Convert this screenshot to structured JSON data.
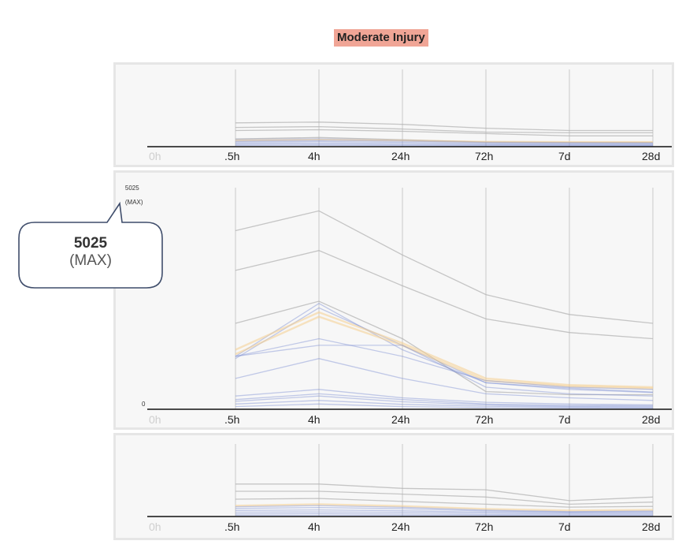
{
  "title": "Moderate Injury",
  "axis": {
    "max_value": "5025",
    "max_tag": "(MAX)",
    "min_value": "0"
  },
  "callout": {
    "value": "5025",
    "tag": "(MAX)"
  },
  "colors": {
    "title_bg": "#f0a596",
    "grey_series": "#b4b4b4",
    "blue_series": "#7d8fd2",
    "orange_series": "#f5cf8f",
    "panel_bg": "#f7f7f7"
  },
  "chart_data": [
    {
      "type": "line",
      "title": "Moderate Injury",
      "categories": [
        "0h",
        ".5h",
        "4h",
        "24h",
        "72h",
        "7d",
        "28d"
      ],
      "ylim": [
        0,
        5025
      ],
      "series_style": "grey",
      "series": [
        {
          "group": "grey",
          "values": [
            null,
            1550,
            1600,
            1450,
            1200,
            1050,
            1050
          ]
        },
        {
          "group": "grey",
          "values": [
            null,
            1250,
            1300,
            1150,
            950,
            900,
            900
          ]
        },
        {
          "group": "grey",
          "values": [
            null,
            1050,
            1100,
            1000,
            850,
            700,
            700
          ]
        },
        {
          "group": "grey",
          "values": [
            null,
            500,
            600,
            450,
            300,
            280,
            280
          ]
        },
        {
          "group": "blue",
          "values": [
            null,
            450,
            520,
            420,
            300,
            260,
            250
          ]
        },
        {
          "group": "orange",
          "values": [
            null,
            400,
            450,
            400,
            320,
            300,
            300
          ]
        },
        {
          "group": "blue",
          "values": [
            null,
            360,
            420,
            360,
            260,
            240,
            230
          ]
        },
        {
          "group": "blue",
          "values": [
            null,
            300,
            340,
            280,
            200,
            180,
            170
          ]
        },
        {
          "group": "blue",
          "values": [
            null,
            220,
            250,
            200,
            150,
            130,
            120
          ]
        },
        {
          "group": "blue",
          "values": [
            null,
            150,
            170,
            130,
            100,
            90,
            80
          ]
        },
        {
          "group": "blue",
          "values": [
            null,
            80,
            90,
            70,
            50,
            45,
            40
          ]
        }
      ]
    },
    {
      "type": "line",
      "title": "",
      "categories": [
        "0h",
        ".5h",
        "4h",
        "24h",
        "72h",
        "7d",
        "28d"
      ],
      "ylim": [
        0,
        5025
      ],
      "series": [
        {
          "group": "grey",
          "values": [
            null,
            4050,
            4500,
            3500,
            2600,
            2150,
            1950
          ]
        },
        {
          "group": "grey",
          "values": [
            null,
            3150,
            3600,
            2800,
            2050,
            1740,
            1600
          ]
        },
        {
          "group": "grey",
          "values": [
            null,
            1950,
            2450,
            1600,
            400,
            330,
            330
          ]
        },
        {
          "group": "blue",
          "values": [
            null,
            1200,
            2400,
            1350,
            600,
            450,
            380
          ]
        },
        {
          "group": "blue",
          "values": [
            null,
            1150,
            2300,
            1450,
            600,
            480,
            390
          ]
        },
        {
          "group": "orange",
          "values": [
            null,
            1350,
            2200,
            1500,
            700,
            550,
            500
          ]
        },
        {
          "group": "orange",
          "values": [
            null,
            1250,
            2100,
            1450,
            650,
            520,
            470
          ]
        },
        {
          "group": "blue",
          "values": [
            null,
            1200,
            1600,
            1200,
            650,
            500,
            450
          ]
        },
        {
          "group": "blue",
          "values": [
            null,
            1200,
            1450,
            1450,
            500,
            350,
            300
          ]
        },
        {
          "group": "blue",
          "values": [
            null,
            700,
            1150,
            700,
            350,
            260,
            200
          ]
        },
        {
          "group": "blue",
          "values": [
            null,
            300,
            450,
            260,
            160,
            120,
            100
          ]
        },
        {
          "group": "blue",
          "values": [
            null,
            220,
            350,
            220,
            120,
            90,
            80
          ]
        },
        {
          "group": "blue",
          "values": [
            null,
            180,
            300,
            170,
            100,
            70,
            60
          ]
        },
        {
          "group": "blue",
          "values": [
            null,
            120,
            200,
            110,
            70,
            50,
            40
          ]
        },
        {
          "group": "blue",
          "values": [
            null,
            60,
            120,
            60,
            40,
            30,
            25
          ]
        }
      ]
    },
    {
      "type": "line",
      "title": "",
      "categories": [
        "0h",
        ".5h",
        "4h",
        "24h",
        "72h",
        "7d",
        "28d"
      ],
      "ylim": [
        0,
        5025
      ],
      "series": [
        {
          "group": "grey",
          "values": [
            null,
            2250,
            2250,
            1950,
            1850,
            1100,
            1350
          ]
        },
        {
          "group": "grey",
          "values": [
            null,
            1750,
            1750,
            1550,
            1350,
            850,
            1000
          ]
        },
        {
          "group": "grey",
          "values": [
            null,
            1200,
            1250,
            1050,
            850,
            650,
            700
          ]
        },
        {
          "group": "orange",
          "values": [
            null,
            750,
            850,
            720,
            520,
            420,
            460
          ]
        },
        {
          "group": "blue",
          "values": [
            null,
            680,
            760,
            640,
            440,
            340,
            380
          ]
        },
        {
          "group": "blue",
          "values": [
            null,
            560,
            620,
            540,
            380,
            300,
            330
          ]
        },
        {
          "group": "blue",
          "values": [
            null,
            420,
            460,
            400,
            300,
            250,
            270
          ]
        },
        {
          "group": "blue",
          "values": [
            null,
            300,
            320,
            290,
            220,
            180,
            190
          ]
        },
        {
          "group": "blue",
          "values": [
            null,
            180,
            200,
            170,
            130,
            110,
            120
          ]
        },
        {
          "group": "blue",
          "values": [
            null,
            80,
            90,
            80,
            60,
            50,
            55
          ]
        }
      ]
    }
  ]
}
